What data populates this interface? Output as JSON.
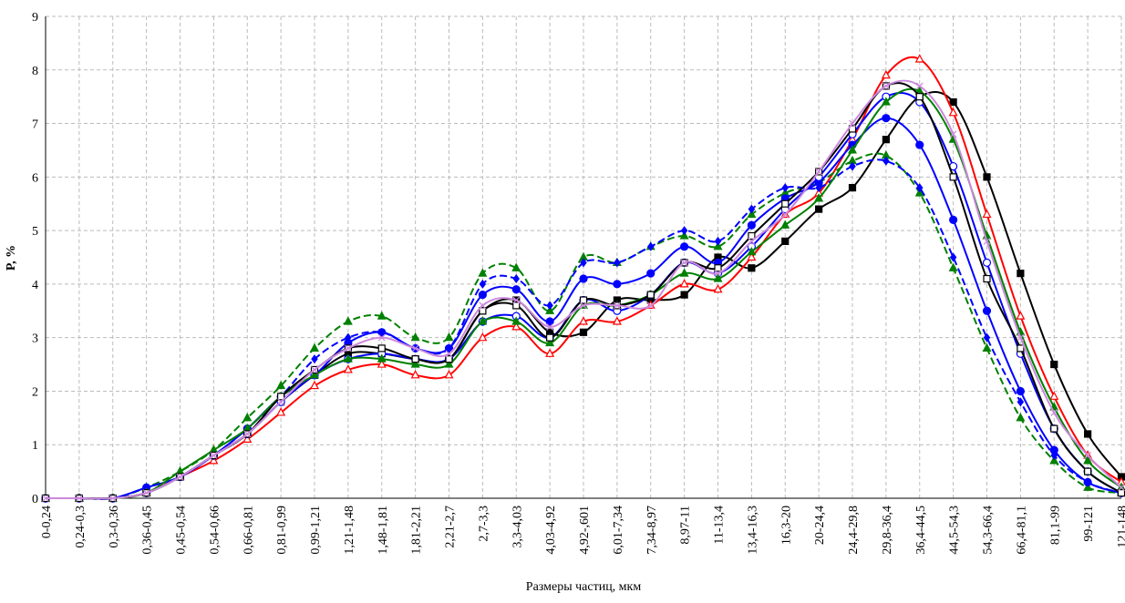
{
  "chart_data": {
    "type": "line",
    "x_label": "Размеры частиц, мкм",
    "y_label": "P, %",
    "categories": [
      "0-0,24",
      "0,24-0,3",
      "0,3-0,36",
      "0,36-0,45",
      "0,45-0,54",
      "0,54-0,66",
      "0,66-0,81",
      "0,81-0,99",
      "0,99-1,21",
      "1,21-1,48",
      "1,48-1,81",
      "1,81-2,21",
      "2,21-2,7",
      "2,7-3,3",
      "3,3-4,03",
      "4,03-4,92",
      "4,92-,601",
      "6,01-7,34",
      "7,34-8,97",
      "8,97-11",
      "11-13,4",
      "13,4-16,3",
      "16,3-20",
      "20-24,4",
      "24,4-29,8",
      "29,8-36,4",
      "36,4-44,5",
      "44,5-54,3",
      "54,3-66,4",
      "66,4-81,1",
      "81,1-99",
      "99-121",
      "121-148"
    ],
    "ylim": [
      0,
      9
    ],
    "yticks": [
      0,
      1,
      2,
      3,
      4,
      5,
      6,
      7,
      8,
      9
    ],
    "grid": true,
    "series": [
      {
        "color": "#000000",
        "marker": "square",
        "filled": true,
        "dashed": false,
        "values": [
          0,
          0,
          0,
          0.1,
          0.4,
          0.8,
          1.2,
          1.8,
          2.3,
          2.7,
          2.7,
          2.6,
          2.6,
          3.5,
          3.7,
          3.1,
          3.1,
          3.7,
          3.7,
          3.8,
          4.5,
          4.3,
          4.8,
          5.4,
          5.8,
          6.7,
          7.5,
          7.4,
          6.0,
          4.2,
          2.5,
          1.2,
          0.4
        ]
      },
      {
        "color": "#ff0000",
        "marker": "triangle",
        "filled": false,
        "dashed": false,
        "values": [
          0,
          0,
          0,
          0.1,
          0.4,
          0.7,
          1.1,
          1.6,
          2.1,
          2.4,
          2.5,
          2.3,
          2.3,
          3.0,
          3.2,
          2.7,
          3.3,
          3.3,
          3.6,
          4.0,
          3.9,
          4.5,
          5.3,
          5.7,
          6.7,
          7.9,
          8.2,
          7.2,
          5.3,
          3.4,
          1.9,
          0.8,
          0.3
        ]
      },
      {
        "color": "#008000",
        "marker": "triangle",
        "filled": true,
        "dashed": true,
        "values": [
          0,
          0,
          0,
          0.2,
          0.5,
          0.9,
          1.5,
          2.1,
          2.8,
          3.3,
          3.4,
          3.0,
          3.0,
          4.2,
          4.3,
          3.5,
          4.5,
          4.4,
          4.7,
          4.9,
          4.7,
          5.3,
          5.7,
          5.9,
          6.3,
          6.4,
          5.7,
          4.3,
          2.8,
          1.5,
          0.7,
          0.2,
          0.1
        ]
      },
      {
        "color": "#0000ff",
        "marker": "diamond",
        "filled": true,
        "dashed": true,
        "values": [
          0,
          0,
          0,
          0.2,
          0.4,
          0.8,
          1.3,
          1.9,
          2.6,
          3.0,
          3.1,
          2.8,
          2.8,
          4.0,
          4.1,
          3.6,
          4.4,
          4.4,
          4.7,
          5.0,
          4.8,
          5.4,
          5.8,
          5.8,
          6.2,
          6.3,
          5.8,
          4.5,
          3.0,
          1.8,
          0.8,
          0.3,
          0.1
        ]
      },
      {
        "color": "#0000ff",
        "marker": "circle",
        "filled": true,
        "dashed": false,
        "values": [
          0,
          0,
          0,
          0.2,
          0.4,
          0.8,
          1.3,
          1.9,
          2.3,
          2.9,
          3.1,
          2.8,
          2.8,
          3.8,
          3.9,
          3.3,
          4.1,
          4.0,
          4.2,
          4.7,
          4.4,
          5.1,
          5.6,
          5.9,
          6.6,
          7.1,
          6.6,
          5.2,
          3.5,
          2.0,
          0.9,
          0.3,
          0.1
        ]
      },
      {
        "color": "#0000ff",
        "marker": "circle",
        "filled": false,
        "dashed": false,
        "values": [
          0,
          0,
          0,
          0.1,
          0.4,
          0.8,
          1.2,
          1.8,
          2.3,
          2.6,
          2.7,
          2.6,
          2.6,
          3.3,
          3.4,
          3.0,
          3.7,
          3.5,
          3.8,
          4.4,
          4.2,
          4.7,
          5.4,
          6.0,
          6.8,
          7.5,
          7.4,
          6.2,
          4.4,
          2.7,
          1.3,
          0.5,
          0.1
        ]
      },
      {
        "color": "#008000",
        "marker": "triangle",
        "filled": true,
        "dashed": false,
        "values": [
          0,
          0,
          0,
          0.1,
          0.5,
          0.9,
          1.3,
          1.9,
          2.3,
          2.6,
          2.6,
          2.5,
          2.5,
          3.3,
          3.3,
          2.9,
          3.6,
          3.6,
          3.8,
          4.2,
          4.1,
          4.6,
          5.1,
          5.6,
          6.5,
          7.4,
          7.6,
          6.7,
          4.9,
          3.1,
          1.7,
          0.7,
          0.2
        ]
      },
      {
        "color": "#000000",
        "marker": "square",
        "filled": false,
        "dashed": false,
        "values": [
          0,
          0,
          0,
          0.1,
          0.4,
          0.8,
          1.2,
          1.9,
          2.4,
          2.8,
          2.8,
          2.6,
          2.6,
          3.5,
          3.6,
          3.0,
          3.7,
          3.6,
          3.8,
          4.4,
          4.3,
          4.9,
          5.5,
          6.1,
          6.9,
          7.7,
          7.5,
          6.0,
          4.1,
          2.8,
          1.3,
          0.5,
          0.1
        ]
      },
      {
        "color": "#cc88dd",
        "marker": "cross",
        "filled": false,
        "dashed": false,
        "values": [
          0,
          0,
          0,
          0.1,
          0.4,
          0.8,
          1.2,
          1.8,
          2.4,
          2.8,
          3.0,
          2.8,
          2.7,
          3.6,
          3.7,
          3.2,
          3.6,
          3.6,
          3.6,
          4.4,
          4.2,
          4.8,
          5.3,
          6.1,
          7.0,
          7.7,
          7.7,
          6.8,
          4.8,
          3.0,
          1.6,
          0.8,
          0.2
        ]
      }
    ]
  }
}
